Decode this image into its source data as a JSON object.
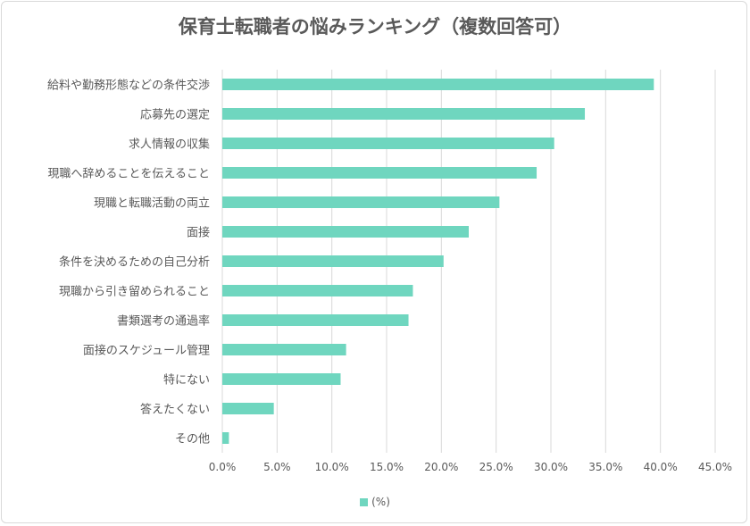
{
  "chart_data": {
    "type": "bar",
    "orientation": "horizontal",
    "title": "保育士転職者の悩みランキング（複数回答可）",
    "categories": [
      "給料や勤務形態などの条件交渉",
      "応募先の選定",
      "求人情報の収集",
      "現職へ辞めることを伝えること",
      "現職と転職活動の両立",
      "面接",
      "条件を決めるための自己分析",
      "現職から引き留められること",
      "書類選考の通過率",
      "面接のスケジュール管理",
      "特にない",
      "答えたくない",
      "その他"
    ],
    "series": [
      {
        "name": "(%)",
        "values": [
          39.4,
          33.1,
          30.3,
          28.7,
          25.3,
          22.5,
          20.2,
          17.4,
          17.0,
          11.3,
          10.8,
          4.7,
          0.6
        ]
      }
    ],
    "xlim": [
      0,
      45
    ],
    "xticks": [
      "0.0%",
      "5.0%",
      "10.0%",
      "15.0%",
      "20.0%",
      "25.0%",
      "30.0%",
      "35.0%",
      "40.0%",
      "45.0%"
    ],
    "grid": true,
    "legend_position": "bottom",
    "bar_color": "#6fd6bf",
    "grid_color": "#d9d9d9",
    "text_color": "#595959"
  }
}
